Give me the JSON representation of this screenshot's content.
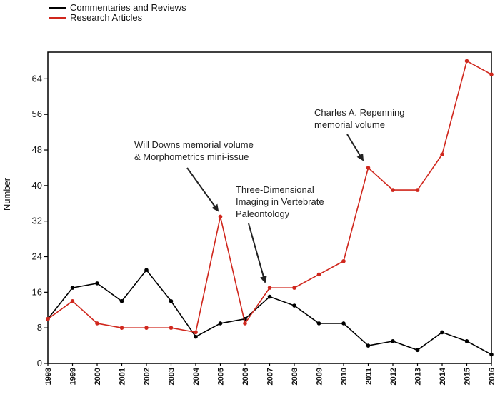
{
  "chart_data": {
    "type": "line",
    "title": "",
    "xlabel": "",
    "ylabel": "Number",
    "x": [
      1998,
      1999,
      2000,
      2001,
      2002,
      2003,
      2004,
      2005,
      2006,
      2007,
      2008,
      2009,
      2010,
      2011,
      2012,
      2013,
      2014,
      2015,
      2016
    ],
    "x_tick_labels": [
      "1998",
      "1999",
      "2000",
      "2001",
      "2002",
      "2003",
      "2004",
      "2005",
      "2006",
      "2007",
      "2008",
      "2009",
      "2010",
      "2011",
      "2012",
      "2013",
      "2014",
      "2015",
      "2016"
    ],
    "yticks": [
      0,
      8,
      16,
      24,
      32,
      40,
      48,
      56,
      64
    ],
    "ylim": [
      0,
      70
    ],
    "grid": false,
    "legend_position": "top-left (above plot)",
    "series": [
      {
        "name": "Commentaries and Reviews",
        "color": "#000000",
        "values": [
          10,
          17,
          18,
          14,
          21,
          14,
          6,
          9,
          10,
          15,
          13,
          9,
          9,
          4,
          5,
          3,
          7,
          5,
          2
        ]
      },
      {
        "name": "Research Articles",
        "color": "#d0271d",
        "values": [
          10,
          14,
          9,
          8,
          8,
          8,
          7,
          33,
          9,
          17,
          17,
          20,
          23,
          44,
          39,
          39,
          47,
          68,
          65
        ]
      }
    ],
    "annotations": [
      {
        "lines": [
          "Will Downs memorial volume",
          "& Morphometrics mini-issue"
        ],
        "target_x": 2005,
        "target_series": "Research Articles"
      },
      {
        "lines": [
          "Three-Dimensional",
          "Imaging in Vertebrate",
          "Paleontology"
        ],
        "target_x": 2007,
        "target_series": "Research Articles"
      },
      {
        "lines": [
          "Charles A. Repenning",
          "memorial volume"
        ],
        "target_x": 2011,
        "target_series": "Research Articles"
      }
    ]
  }
}
